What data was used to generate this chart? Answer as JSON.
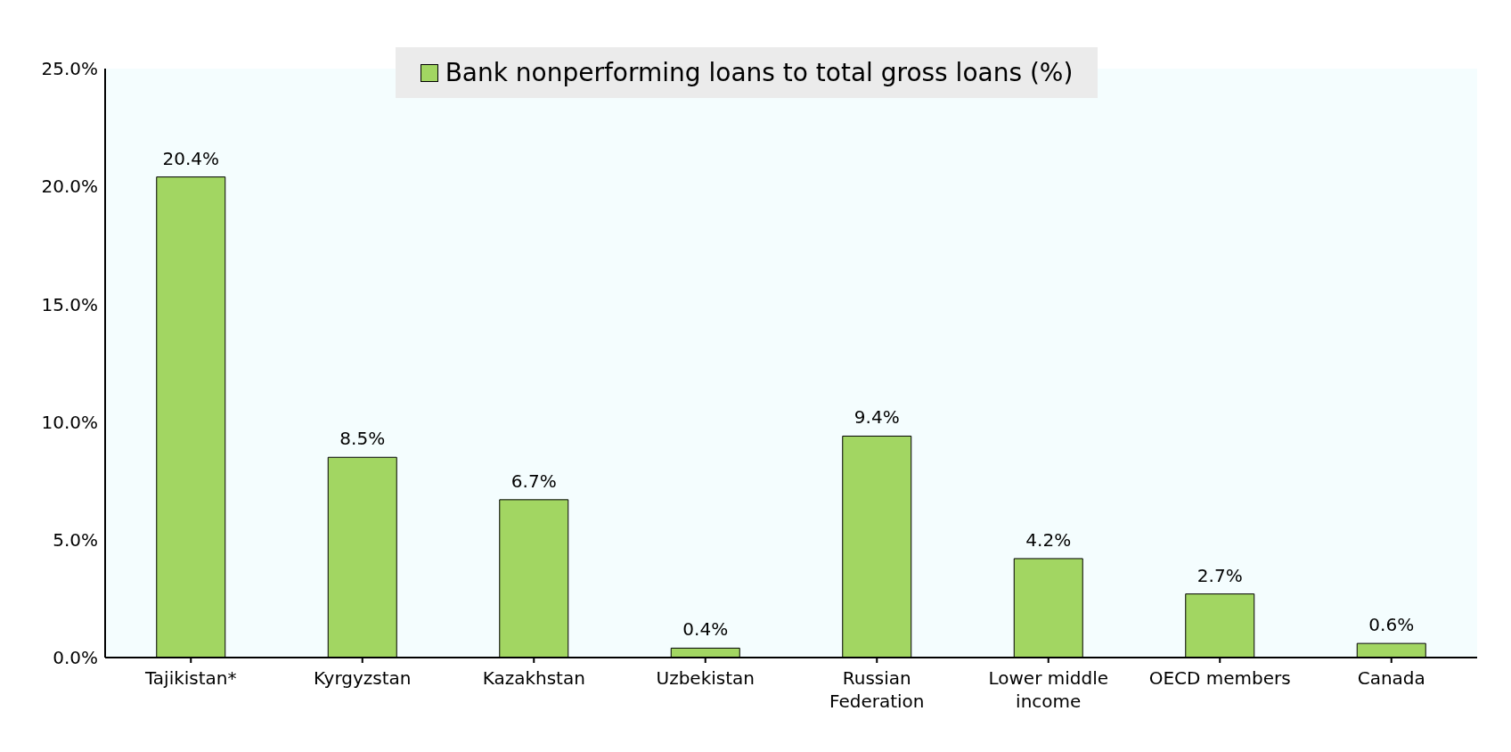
{
  "chart_data": {
    "type": "bar",
    "categories": [
      "Tajikistan*",
      "Kyrgyzstan",
      "Kazakhstan",
      "Uzbekistan",
      "Russian Federation",
      "Lower middle income",
      "OECD members",
      "Canada"
    ],
    "series": [
      {
        "name": "Bank nonperforming loans to total gross loans (%)",
        "color": "#a2d662",
        "values": [
          20.4,
          8.5,
          6.7,
          0.4,
          9.4,
          4.2,
          2.7,
          0.6
        ],
        "value_labels": [
          "20.4%",
          "8.5%",
          "6.7%",
          "0.4%",
          "9.4%",
          "4.2%",
          "2.7%",
          "0.6%"
        ]
      }
    ],
    "ylim": [
      0,
      25
    ],
    "yticks": [
      {
        "value": 0,
        "label": "0.0%"
      },
      {
        "value": 5,
        "label": "5.0%"
      },
      {
        "value": 10,
        "label": "10.0%"
      },
      {
        "value": 15,
        "label": "15.0%"
      },
      {
        "value": 20,
        "label": "20.0%"
      },
      {
        "value": 25,
        "label": "25.0%"
      }
    ],
    "grid": false,
    "legend": "top"
  }
}
